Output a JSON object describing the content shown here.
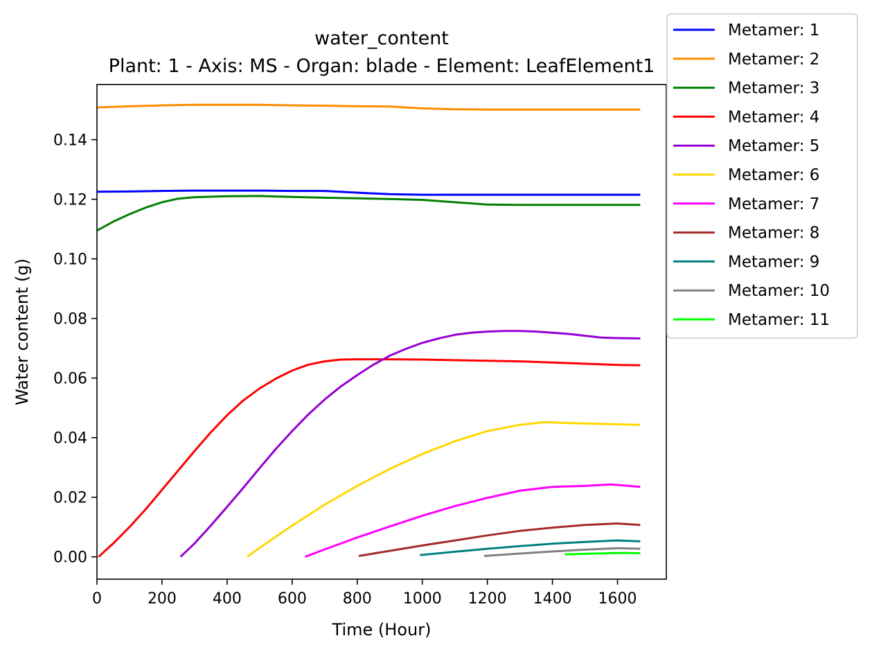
{
  "chart_data": {
    "type": "line",
    "title": "water_content",
    "subtitle": "Plant: 1 - Axis: MS - Organ: blade - Element: LeafElement1",
    "xlabel": "Time (Hour)",
    "ylabel": "Water content (g)",
    "xlim": [
      0,
      1750
    ],
    "ylim": [
      -0.0075,
      0.1585
    ],
    "xticks": [
      0,
      200,
      400,
      600,
      800,
      1000,
      1200,
      1400,
      1600
    ],
    "yticks": [
      0.0,
      0.02,
      0.04,
      0.06,
      0.08,
      0.1,
      0.12,
      0.14
    ],
    "xtick_labels": [
      "0",
      "200",
      "400",
      "600",
      "800",
      "1000",
      "1200",
      "1400",
      "1600"
    ],
    "ytick_labels": [
      "0.00",
      "0.02",
      "0.04",
      "0.06",
      "0.08",
      "0.10",
      "0.12",
      "0.14"
    ],
    "grid": false,
    "legend_position": "outside-top-right",
    "series": [
      {
        "name": "Metamer: 1",
        "color": "#0000ff",
        "x": [
          0,
          100,
          200,
          300,
          400,
          500,
          600,
          700,
          800,
          900,
          1000,
          1100,
          1200,
          1400,
          1670
        ],
        "y": [
          0.1225,
          0.1226,
          0.1228,
          0.1229,
          0.1229,
          0.1229,
          0.1228,
          0.1228,
          0.1222,
          0.1217,
          0.1215,
          0.1215,
          0.1215,
          0.1215,
          0.1215
        ]
      },
      {
        "name": "Metamer: 2",
        "color": "#ff8c00",
        "x": [
          0,
          100,
          200,
          300,
          400,
          500,
          600,
          700,
          800,
          900,
          1000,
          1100,
          1200,
          1400,
          1670
        ],
        "y": [
          0.1508,
          0.1512,
          0.1515,
          0.1517,
          0.1517,
          0.1517,
          0.1515,
          0.1514,
          0.1512,
          0.1511,
          0.1505,
          0.1502,
          0.1501,
          0.1501,
          0.1501
        ]
      },
      {
        "name": "Metamer: 3",
        "color": "#008000",
        "x": [
          0,
          50,
          100,
          150,
          200,
          250,
          300,
          400,
          500,
          600,
          700,
          800,
          900,
          1000,
          1100,
          1200,
          1300,
          1400,
          1670
        ],
        "y": [
          0.1095,
          0.1125,
          0.115,
          0.1172,
          0.119,
          0.1202,
          0.1207,
          0.121,
          0.1211,
          0.1208,
          0.1205,
          0.1203,
          0.1201,
          0.1198,
          0.119,
          0.1182,
          0.1181,
          0.1181,
          0.1181
        ]
      },
      {
        "name": "Metamer: 4",
        "color": "#ff0000",
        "x": [
          5,
          50,
          100,
          150,
          200,
          250,
          300,
          350,
          400,
          450,
          500,
          550,
          600,
          650,
          700,
          750,
          800,
          900,
          1000,
          1100,
          1200,
          1300,
          1400,
          1500,
          1600,
          1670
        ],
        "y": [
          0.0,
          0.0045,
          0.01,
          0.016,
          0.0225,
          0.029,
          0.0355,
          0.0418,
          0.0475,
          0.0525,
          0.0565,
          0.0598,
          0.0625,
          0.0645,
          0.0656,
          0.0662,
          0.0663,
          0.0663,
          0.0662,
          0.066,
          0.0658,
          0.0656,
          0.0652,
          0.0648,
          0.0644,
          0.0643
        ]
      },
      {
        "name": "Metamer: 5",
        "color": "#9400d3",
        "x": [
          257,
          300,
          350,
          400,
          450,
          500,
          550,
          600,
          650,
          700,
          750,
          800,
          850,
          900,
          950,
          1000,
          1050,
          1100,
          1150,
          1200,
          1250,
          1300,
          1350,
          1400,
          1450,
          1500,
          1550,
          1600,
          1670
        ],
        "y": [
          0.0,
          0.0045,
          0.0105,
          0.0168,
          0.0232,
          0.0298,
          0.0362,
          0.0422,
          0.0478,
          0.0528,
          0.0572,
          0.061,
          0.0645,
          0.0675,
          0.0698,
          0.0718,
          0.0733,
          0.0745,
          0.0752,
          0.0756,
          0.0758,
          0.0758,
          0.0756,
          0.0752,
          0.0748,
          0.0742,
          0.0736,
          0.0734,
          0.0733
        ]
      },
      {
        "name": "Metamer: 6",
        "color": "#ffd700",
        "x": [
          462,
          500,
          600,
          700,
          800,
          900,
          1000,
          1100,
          1200,
          1300,
          1375,
          1450,
          1550,
          1670
        ],
        "y": [
          0.0,
          0.003,
          0.0105,
          0.0175,
          0.0238,
          0.0295,
          0.0345,
          0.0388,
          0.0422,
          0.0443,
          0.0452,
          0.0449,
          0.0446,
          0.0443
        ]
      },
      {
        "name": "Metamer: 7",
        "color": "#ff00ff",
        "x": [
          640,
          700,
          800,
          900,
          1000,
          1100,
          1200,
          1300,
          1400,
          1500,
          1580,
          1670
        ],
        "y": [
          0.0,
          0.0025,
          0.0065,
          0.0102,
          0.0138,
          0.017,
          0.0198,
          0.0222,
          0.0235,
          0.0238,
          0.0243,
          0.0235
        ]
      },
      {
        "name": "Metamer: 8",
        "color": "#a52a2a",
        "x": [
          805,
          900,
          1000,
          1100,
          1200,
          1300,
          1400,
          1500,
          1600,
          1670
        ],
        "y": [
          0.0003,
          0.002,
          0.0038,
          0.0055,
          0.0072,
          0.0087,
          0.0098,
          0.0107,
          0.0112,
          0.0107
        ]
      },
      {
        "name": "Metamer: 9",
        "color": "#008080",
        "x": [
          993,
          1100,
          1200,
          1300,
          1400,
          1500,
          1600,
          1670
        ],
        "y": [
          0.0006,
          0.0017,
          0.0027,
          0.0036,
          0.0044,
          0.005,
          0.0055,
          0.0052
        ]
      },
      {
        "name": "Metamer: 10",
        "color": "#808080",
        "x": [
          1190,
          1300,
          1400,
          1500,
          1600,
          1670
        ],
        "y": [
          0.0003,
          0.0011,
          0.0018,
          0.0024,
          0.0029,
          0.0027
        ]
      },
      {
        "name": "Metamer: 11",
        "color": "#00ff00",
        "x": [
          1438,
          1500,
          1560,
          1620,
          1670
        ],
        "y": [
          0.0008,
          0.001,
          0.0012,
          0.0013,
          0.0012
        ]
      }
    ]
  }
}
